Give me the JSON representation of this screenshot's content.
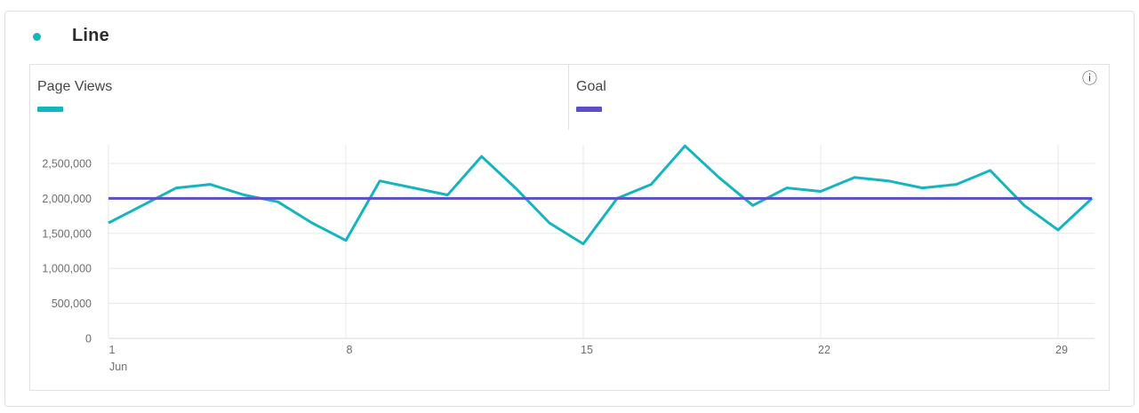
{
  "header": {
    "title": "Line"
  },
  "icons": {
    "info": "ⓘ",
    "bullet": "●"
  },
  "colors": {
    "accent_teal": "#15b5bf",
    "accent_purple": "#5a4fc5",
    "grid": "#e7e7e7",
    "baseline": "#d9d9d9",
    "axis_text": "#6e6e6e",
    "title_text": "#2c2c2c",
    "label_text": "#464646",
    "border": "#e1e1e1"
  },
  "chart_data": {
    "type": "line",
    "title": "Line",
    "xlabel": "Jun",
    "ylabel": "",
    "grid": true,
    "legend_position": "top",
    "x": [
      1,
      2,
      3,
      4,
      5,
      6,
      7,
      8,
      9,
      10,
      11,
      12,
      13,
      14,
      15,
      16,
      17,
      18,
      19,
      20,
      21,
      22,
      23,
      24,
      25,
      26,
      27,
      28,
      29,
      30
    ],
    "x_ticks": [
      1,
      8,
      15,
      22,
      29
    ],
    "x_tick_month_label": "Jun",
    "y_ticks": [
      0,
      500000,
      1000000,
      1500000,
      2000000,
      2500000
    ],
    "ylim": [
      0,
      2770000
    ],
    "series": [
      {
        "name": "Page Views",
        "color": "#15b5bf",
        "values": [
          1650000,
          1900000,
          2150000,
          2200000,
          2050000,
          1950000,
          1650000,
          1400000,
          2250000,
          2150000,
          2050000,
          2600000,
          2150000,
          1650000,
          1350000,
          2000000,
          2200000,
          2750000,
          2300000,
          1900000,
          2150000,
          2100000,
          2300000,
          2250000,
          2150000,
          2200000,
          2400000,
          1900000,
          1550000,
          2000000
        ]
      },
      {
        "name": "Goal",
        "color": "#5a4fc5",
        "constant": 2000000
      }
    ]
  }
}
